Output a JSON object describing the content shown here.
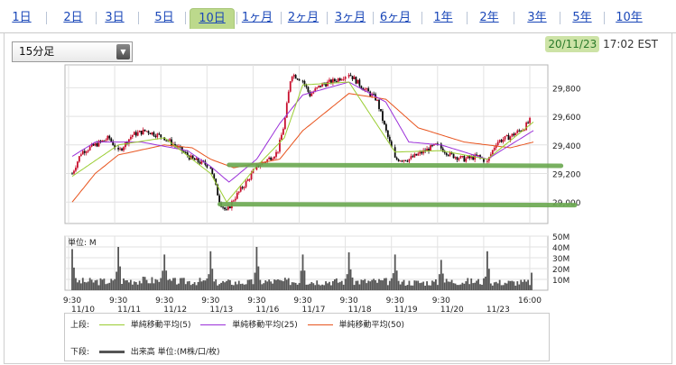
{
  "tabs": [
    {
      "label": "1日",
      "active": false
    },
    {
      "label": "2日",
      "active": false
    },
    {
      "label": "3日",
      "active": false
    },
    {
      "label": "5日",
      "active": false
    },
    {
      "label": "10日",
      "active": true
    },
    {
      "label": "1ヶ月",
      "active": false
    },
    {
      "label": "2ヶ月",
      "active": false
    },
    {
      "label": "3ヶ月",
      "active": false
    },
    {
      "label": "6ヶ月",
      "active": false
    },
    {
      "label": "1年",
      "active": false
    },
    {
      "label": "2年",
      "active": false
    },
    {
      "label": "3年",
      "active": false
    },
    {
      "label": "5年",
      "active": false
    },
    {
      "label": "10年",
      "active": false
    }
  ],
  "interval_select": {
    "value": "15分足"
  },
  "timestamp": {
    "date": "20/11/23",
    "time": "17:02 EST"
  },
  "legend": {
    "upper_label": "上段:",
    "lower_label": "下段:",
    "ma5": "単純移動平均(5)",
    "ma25": "単純移動平均(25)",
    "ma50": "単純移動平均(50)",
    "volume": "出来高 単位:(M株/口/枚)"
  },
  "colors": {
    "ma5": "#9acd32",
    "ma25": "#9b30d9",
    "ma50": "#e8541e",
    "candle": "#c8102e",
    "candle_down": "#0a0a0a",
    "annotation": "#6aa84f",
    "volume": "#555555"
  },
  "chart_data": [
    {
      "type": "candlestick",
      "title": "",
      "ylim": [
        28850,
        29960
      ],
      "y_ticks": [
        "29,800",
        "29,600",
        "29,400",
        "29,200",
        "29,000"
      ],
      "y_tick_values": [
        29800,
        29600,
        29400,
        29200,
        29000
      ],
      "sessions": [
        "11/10",
        "11/11",
        "11/12",
        "11/13",
        "11/16",
        "11/17",
        "11/18",
        "11/19",
        "11/20",
        "11/23"
      ],
      "x_tick_top": [
        "9:30",
        "9:30",
        "9:30",
        "9:30",
        "9:30",
        "9:30",
        "9:30",
        "9:30",
        "9:30",
        "16:00"
      ],
      "x_tick_bottom": [
        "11/10",
        "11/11",
        "11/12",
        "11/13",
        "11/16",
        "11/17",
        "11/18",
        "11/19",
        "11/20",
        "11/23"
      ],
      "price_path": [
        [
          0,
          29200
        ],
        [
          0.2,
          29350
        ],
        [
          0.5,
          29400
        ],
        [
          0.8,
          29450
        ],
        [
          1.0,
          29350
        ],
        [
          1.3,
          29470
        ],
        [
          1.6,
          29500
        ],
        [
          2.0,
          29450
        ],
        [
          2.3,
          29380
        ],
        [
          2.6,
          29300
        ],
        [
          3.0,
          29250
        ],
        [
          3.2,
          29000
        ],
        [
          3.35,
          28930
        ],
        [
          3.5,
          29020
        ],
        [
          3.8,
          29150
        ],
        [
          4.0,
          29250
        ],
        [
          4.25,
          29300
        ],
        [
          4.45,
          29350
        ],
        [
          4.6,
          29550
        ],
        [
          4.75,
          29900
        ],
        [
          5.0,
          29850
        ],
        [
          5.15,
          29750
        ],
        [
          5.4,
          29820
        ],
        [
          5.7,
          29850
        ],
        [
          6.0,
          29900
        ],
        [
          6.3,
          29800
        ],
        [
          6.6,
          29720
        ],
        [
          6.8,
          29500
        ],
        [
          7.0,
          29300
        ],
        [
          7.3,
          29300
        ],
        [
          7.6,
          29350
        ],
        [
          7.9,
          29400
        ],
        [
          8.2,
          29330
        ],
        [
          8.5,
          29300
        ],
        [
          8.8,
          29320
        ],
        [
          9.0,
          29280
        ],
        [
          9.2,
          29420
        ],
        [
          9.5,
          29460
        ],
        [
          9.8,
          29520
        ],
        [
          10.0,
          29600
        ]
      ],
      "ma_paths": {
        "ma5": [
          [
            0,
            29180
          ],
          [
            1.0,
            29400
          ],
          [
            2.0,
            29450
          ],
          [
            3.0,
            29200
          ],
          [
            3.35,
            29000
          ],
          [
            4.0,
            29250
          ],
          [
            4.6,
            29450
          ],
          [
            5.0,
            29820
          ],
          [
            6.0,
            29840
          ],
          [
            7.0,
            29350
          ],
          [
            8.0,
            29360
          ],
          [
            9.0,
            29300
          ],
          [
            10.0,
            29560
          ]
        ],
        "ma25": [
          [
            0,
            29320
          ],
          [
            0.5,
            29420
          ],
          [
            1.5,
            29420
          ],
          [
            2.5,
            29360
          ],
          [
            3.0,
            29250
          ],
          [
            3.4,
            29140
          ],
          [
            4.0,
            29300
          ],
          [
            4.5,
            29550
          ],
          [
            5.0,
            29750
          ],
          [
            6.0,
            29840
          ],
          [
            6.8,
            29700
          ],
          [
            7.3,
            29420
          ],
          [
            8.0,
            29400
          ],
          [
            9.0,
            29300
          ],
          [
            10.0,
            29500
          ]
        ],
        "ma50": [
          [
            0,
            29000
          ],
          [
            0.5,
            29200
          ],
          [
            1.0,
            29330
          ],
          [
            2.0,
            29400
          ],
          [
            2.6,
            29380
          ],
          [
            3.0,
            29300
          ],
          [
            3.5,
            29240
          ],
          [
            4.5,
            29300
          ],
          [
            5.0,
            29500
          ],
          [
            6.0,
            29760
          ],
          [
            6.8,
            29720
          ],
          [
            7.5,
            29520
          ],
          [
            8.5,
            29420
          ],
          [
            9.5,
            29380
          ],
          [
            10.0,
            29420
          ]
        ]
      },
      "annotations": [
        {
          "type": "hline",
          "y": 29260,
          "from_session": 3.4,
          "to_session": 10.6,
          "color": "#6aa84f"
        },
        {
          "type": "hline",
          "y": 28985,
          "from_session": 3.2,
          "to_session": 10.9,
          "color": "#6aa84f"
        },
        {
          "type": "highlight",
          "target": "timestamp.date",
          "color": "#cde3a6"
        },
        {
          "type": "highlight",
          "target": "tabs.10日",
          "color": "#bcd98c"
        }
      ]
    },
    {
      "type": "bar",
      "title": "",
      "label": "単位: M",
      "ylim": [
        0,
        50
      ],
      "y_ticks": [
        "50M",
        "40M",
        "30M",
        "20M",
        "10M"
      ],
      "y_tick_values": [
        50,
        40,
        30,
        20,
        10
      ],
      "session_open_spike": [
        38,
        40,
        33,
        36,
        40,
        33,
        35,
        33,
        28,
        36
      ],
      "baseline_level": [
        9,
        10,
        9,
        8,
        9,
        9,
        9,
        8,
        9,
        8
      ]
    }
  ]
}
